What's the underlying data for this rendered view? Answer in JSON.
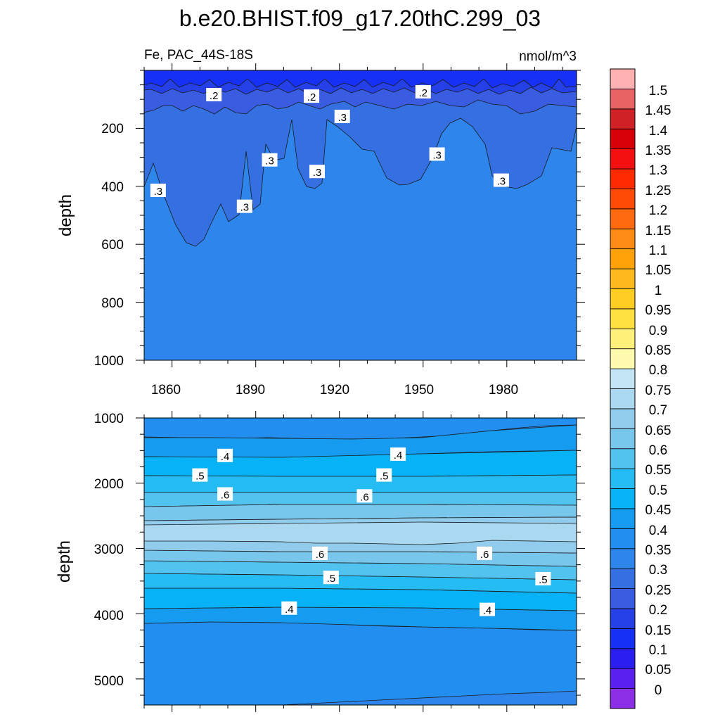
{
  "title": "b.e20.BHIST.f09_g17.20thC.299_03",
  "subtitle_left": "Fe, PAC_44S-18S",
  "subtitle_right": "nmol/m^3",
  "colors": {
    "levels": [
      "#8c2ee6",
      "#5b1ff0",
      "#2a1ef0",
      "#1630f5",
      "#2540e6",
      "#3a5ce0",
      "#3470e2",
      "#2e86ec",
      "#228ef0",
      "#159cf0",
      "#08b2f6",
      "#25bcf4",
      "#52c2ee",
      "#78c6ec",
      "#92ccec",
      "#aad8f0",
      "#c2e4f4",
      "#fffaae",
      "#fff07a",
      "#ffe040",
      "#ffcc22",
      "#ffb81e",
      "#ffa20a",
      "#ff8a14",
      "#ff6a10",
      "#ff4a08",
      "#ff2a00",
      "#f41010",
      "#d80008",
      "#d02226",
      "#e86464",
      "#ffb0b0"
    ],
    "frame": "#000000"
  },
  "colorbar": {
    "labels": [
      "1.5",
      "1.45",
      "1.4",
      "1.35",
      "1.3",
      "1.25",
      "1.2",
      "1.15",
      "1.1",
      "1.05",
      "1",
      "0.95",
      "0.9",
      "0.85",
      "0.8",
      "0.75",
      "0.7",
      "0.65",
      "0.6",
      "0.55",
      "0.5",
      "0.45",
      "0.4",
      "0.35",
      "0.3",
      "0.25",
      "0.2",
      "0.15",
      "0.1",
      "0.05",
      "0"
    ]
  },
  "chart_data": [
    {
      "type": "heatmap",
      "panel": "top",
      "ylabel": "depth",
      "x_ticks": [
        "1860",
        "1890",
        "1920",
        "1950",
        "1980"
      ],
      "y_ticks": [
        "200",
        "400",
        "600",
        "800",
        "1000"
      ],
      "x_ticks_values": [
        1860,
        1890,
        1920,
        1950,
        1980
      ],
      "y_ticks_values": [
        200,
        400,
        600,
        800,
        1000
      ],
      "xlim": [
        1850,
        2005
      ],
      "ylim": [
        0,
        1000
      ],
      "y_reversed": true,
      "contour_labels": [
        {
          "text": ".2",
          "x": 1875,
          "depth": 85
        },
        {
          "text": ".2",
          "x": 1910,
          "depth": 90
        },
        {
          "text": ".2",
          "x": 1950,
          "depth": 75
        },
        {
          "text": ".3",
          "x": 1921,
          "depth": 160
        },
        {
          "text": ".3",
          "x": 1895,
          "depth": 310
        },
        {
          "text": ".3",
          "x": 1955,
          "depth": 290
        },
        {
          "text": ".3",
          "x": 1855,
          "depth": 415
        },
        {
          "text": ".3",
          "x": 1912,
          "depth": 350
        },
        {
          "text": ".3",
          "x": 1978,
          "depth": 380
        },
        {
          "text": ".3",
          "x": 1886,
          "depth": 470
        }
      ]
    },
    {
      "type": "heatmap",
      "panel": "bottom",
      "ylabel": "depth",
      "y_ticks": [
        "1000",
        "2000",
        "3000",
        "4000",
        "5000"
      ],
      "x_ticks_values": [
        1860,
        1890,
        1920,
        1950,
        1980
      ],
      "y_ticks_values": [
        1000,
        2000,
        3000,
        4000,
        5000
      ],
      "xlim": [
        1850,
        2005
      ],
      "ylim": [
        1000,
        5400
      ],
      "y_reversed": true,
      "contour_labels": [
        {
          "text": ".4",
          "x": 1879,
          "depth": 1580
        },
        {
          "text": ".4",
          "x": 1941,
          "depth": 1560
        },
        {
          "text": ".5",
          "x": 1870,
          "depth": 1880
        },
        {
          "text": ".5",
          "x": 1936,
          "depth": 1880
        },
        {
          "text": ".6",
          "x": 1879,
          "depth": 2170
        },
        {
          "text": ".6",
          "x": 1929,
          "depth": 2200
        },
        {
          "text": ".6",
          "x": 1913,
          "depth": 3080
        },
        {
          "text": ".6",
          "x": 1972,
          "depth": 3080
        },
        {
          "text": ".5",
          "x": 1917,
          "depth": 3450
        },
        {
          "text": ".5",
          "x": 1993,
          "depth": 3470
        },
        {
          "text": ".4",
          "x": 1902,
          "depth": 3920
        },
        {
          "text": ".4",
          "x": 1973,
          "depth": 3940
        }
      ]
    }
  ]
}
